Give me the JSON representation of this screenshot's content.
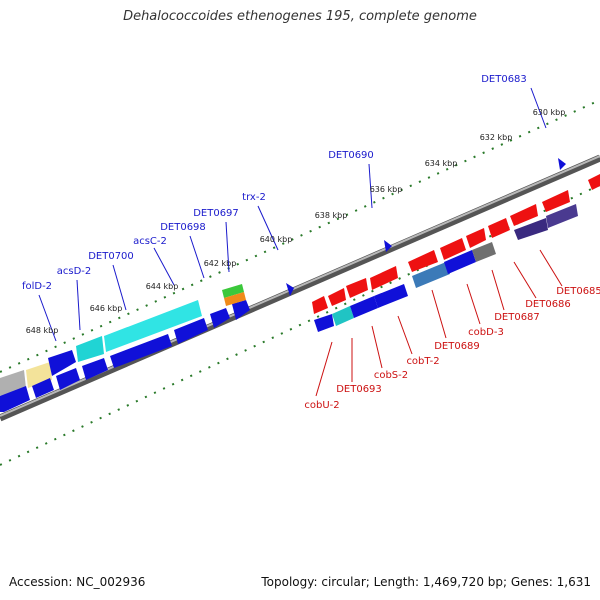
{
  "title": "Dehalococcoides ethenogenes 195, complete genome",
  "footer": {
    "accession": "Accession: NC_002936",
    "info": "Topology: circular; Length: 1,469,720 bp; Genes: 1,631"
  },
  "colors": {
    "plus_label": "#1a1acc",
    "minus_label": "#cc1111",
    "ruler": "#2a7a2a",
    "backbone": "#8a8a8a"
  },
  "tick_labels": [
    "630 kbp",
    "632 kbp",
    "634 kbp",
    "636 kbp",
    "638 kbp",
    "640 kbp",
    "642 kbp",
    "644 kbp",
    "646 kbp",
    "648 kbp"
  ],
  "plus_labels": [
    "DET0683",
    "DET0690",
    "trx-2",
    "DET0697",
    "DET0698",
    "acsC-2",
    "DET0700",
    "acsD-2",
    "folD-2"
  ],
  "minus_labels": [
    "DET0685",
    "DET0686",
    "DET0687",
    "cobD-3",
    "DET0689",
    "cobT-2",
    "cobS-2",
    "DET0693",
    "cobU-2"
  ]
}
